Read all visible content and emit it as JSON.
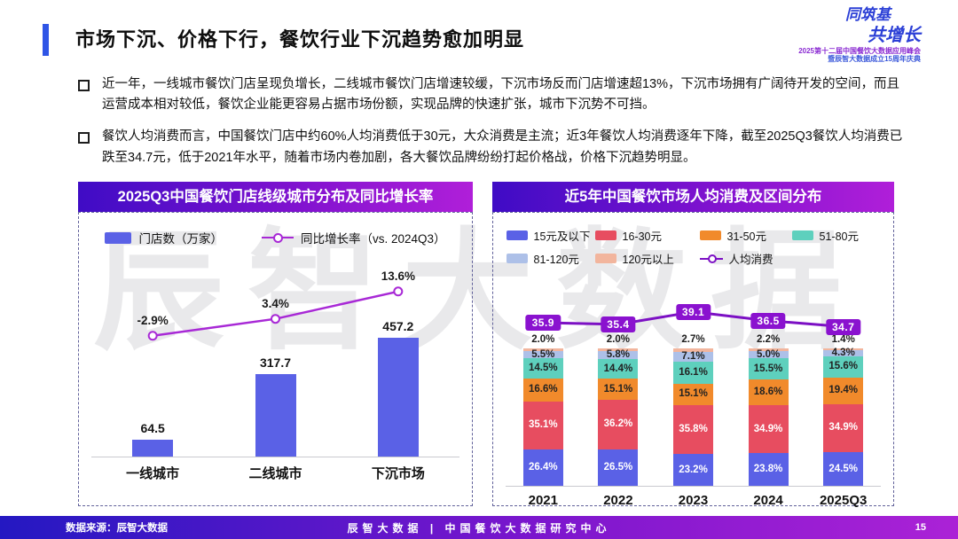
{
  "header": {
    "title": "市场下沉、价格下行，餐饮行业下沉趋势愈加明显"
  },
  "logo": {
    "line1": "同筑基",
    "line2": "共增长",
    "sub1": "2025第十二届中国餐饮大数据应用峰会",
    "sub2": "暨辰智大数据成立15周年庆典"
  },
  "bullets": [
    "近一年，一线城市餐饮门店呈现负增长，二线城市餐饮门店增速较缓，下沉市场反而门店增速超13%，下沉市场拥有广阔待开发的空间，而且运营成本相对较低，餐饮企业能更容易占据市场份额，实现品牌的快速扩张，城市下沉势不可挡。",
    "餐饮人均消费而言，中国餐饮门店中约60%人均消费低于30元，大众消费是主流；近3年餐饮人均消费逐年下降，截至2025Q3餐饮人均消费已跌至34.7元，低于2021年水平，随着市场内卷加剧，各大餐饮品牌纷纷打起价格战，价格下沉趋势明显。"
  ],
  "watermark": "辰智大数据",
  "chart_data": [
    {
      "type": "bar",
      "title": "2025Q3中国餐饮门店线级城市分布及同比增长率",
      "categories": [
        "一线城市",
        "二线城市",
        "下沉市场"
      ],
      "series": [
        {
          "name": "门店数（万家）",
          "kind": "bar",
          "color": "#5a61e6",
          "values": [
            64.5,
            317.7,
            457.2
          ]
        },
        {
          "name": "同比增长率（vs. 2024Q3）",
          "kind": "line",
          "color": "#a829d6",
          "unit": "%",
          "values": [
            -2.9,
            3.4,
            13.6
          ]
        }
      ],
      "legend_position": "top",
      "grid": false
    },
    {
      "type": "bar",
      "subtype": "stacked-bar-with-line",
      "title": "近5年中国餐饮市场人均消费及区间分布",
      "categories": [
        "2021",
        "2022",
        "2023",
        "2024",
        "2025Q3"
      ],
      "stack_series": [
        {
          "name": "15元及以下",
          "color": "#5a61e6",
          "label_color": "#ffffff",
          "values": [
            26.4,
            26.5,
            23.2,
            23.8,
            24.5
          ]
        },
        {
          "name": "16-30元",
          "color": "#e74d60",
          "label_color": "#ffffff",
          "values": [
            35.1,
            36.2,
            35.8,
            34.9,
            34.9
          ]
        },
        {
          "name": "31-50元",
          "color": "#f18a2b",
          "label_color": "#222222",
          "values": [
            16.6,
            15.1,
            15.1,
            18.6,
            19.4
          ]
        },
        {
          "name": "51-80元",
          "color": "#5ed0bd",
          "label_color": "#222222",
          "values": [
            14.5,
            14.4,
            16.1,
            15.5,
            15.6
          ]
        },
        {
          "name": "81-120元",
          "color": "#adc0e8",
          "label_color": "#222222",
          "values": [
            5.5,
            5.8,
            7.1,
            5.0,
            4.3
          ]
        },
        {
          "name": "120元以上",
          "color": "#f2b59d",
          "label_color": "#222222",
          "values": [
            2.0,
            2.0,
            2.7,
            2.2,
            1.4
          ]
        }
      ],
      "line_series": {
        "name": "人均消费",
        "color": "#7c10c4",
        "box_color": "#8a12cf",
        "values": [
          35.9,
          35.4,
          39.1,
          36.5,
          34.7
        ]
      },
      "unit": "%",
      "legend_position": "top",
      "grid": false
    }
  ],
  "footer": {
    "source": "数据来源：辰智大数据",
    "center": "辰智大数据 | 中国餐饮大数据研究中心",
    "page": "15"
  },
  "colors": {
    "accent": "#2f55e6",
    "panel_gradient": [
      "#3f0cc5",
      "#8012cf",
      "#b01fd9"
    ],
    "footer_gradient": [
      "#2418c2",
      "#7a16cd",
      "#ab22d6"
    ]
  }
}
